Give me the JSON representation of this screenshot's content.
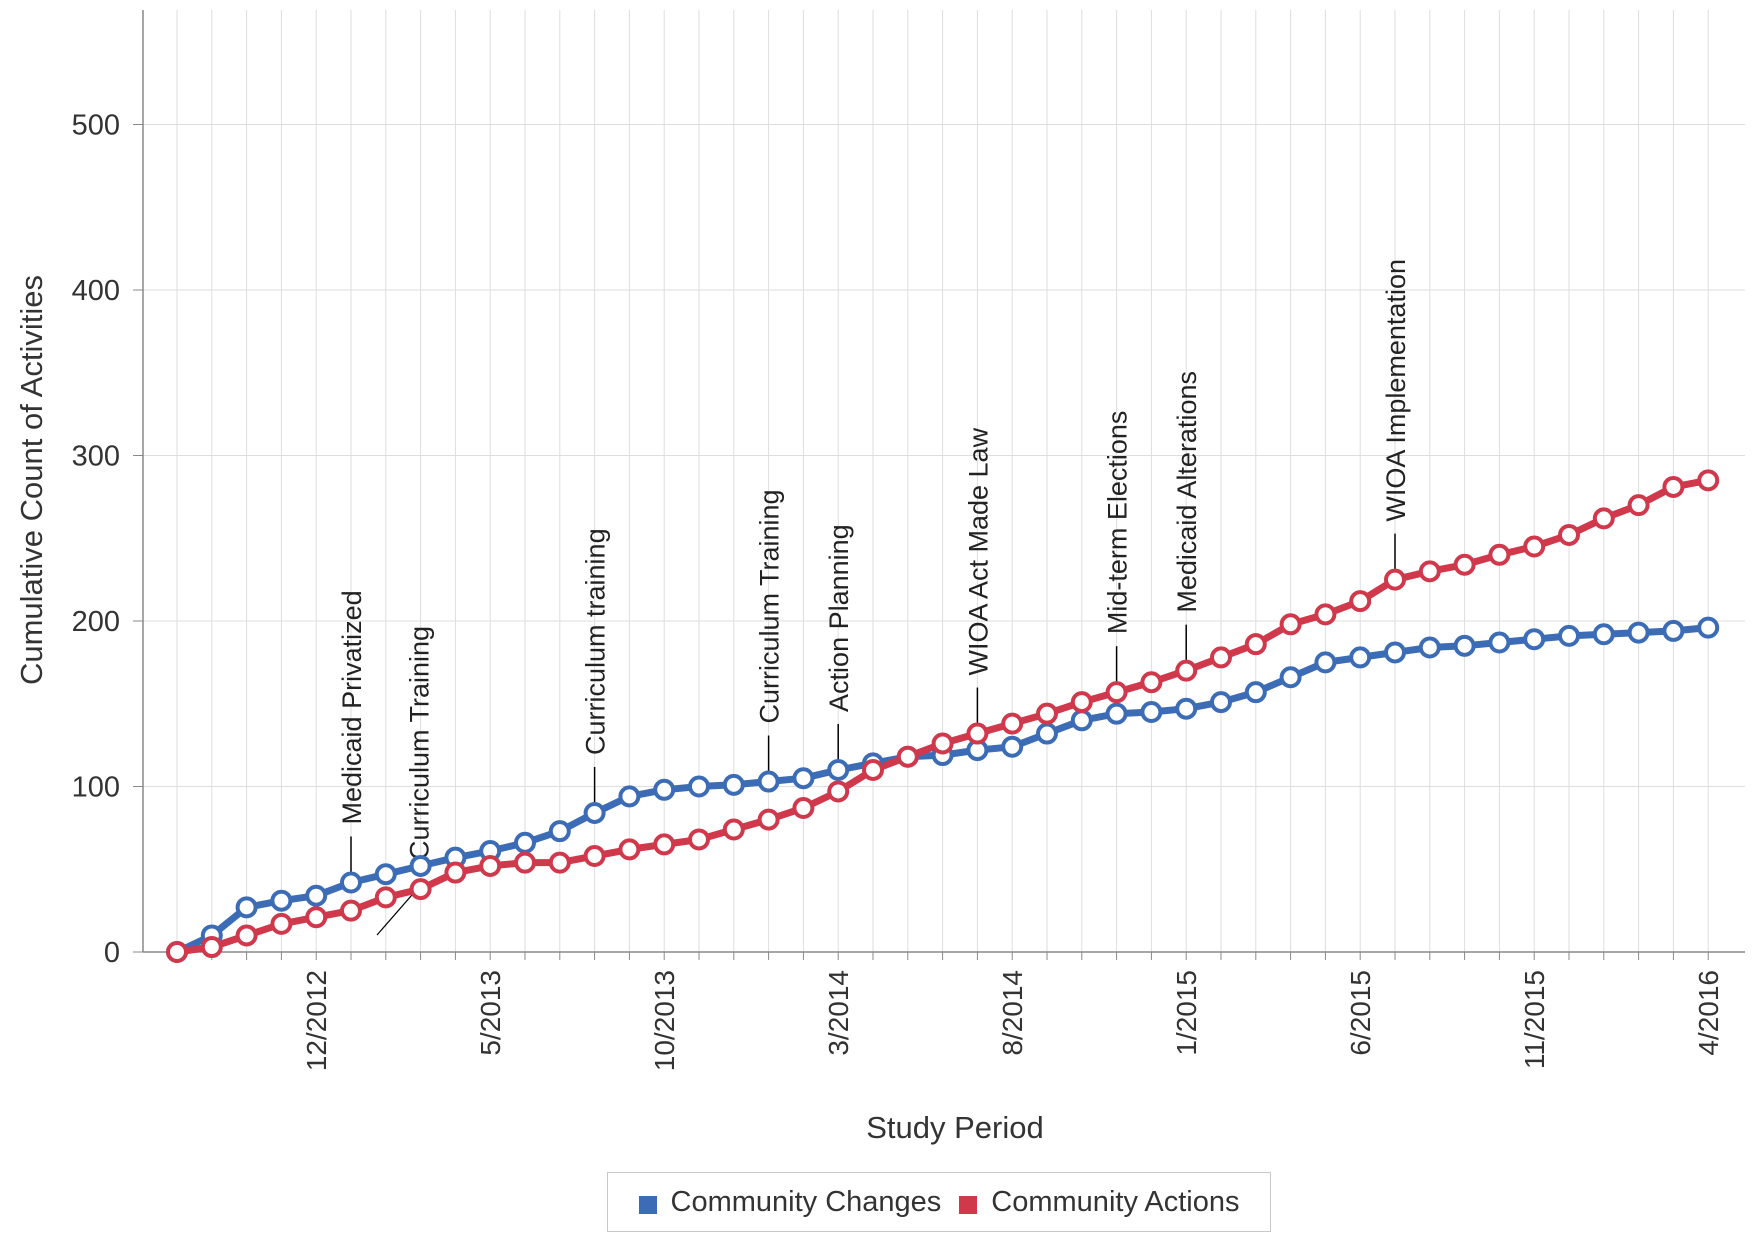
{
  "chart_data": {
    "type": "line",
    "xlabel": "Study Period",
    "ylabel": "Cumulative Count of Activities",
    "ylim": [
      0,
      560
    ],
    "y_ticks": [
      0,
      100,
      200,
      300,
      400,
      500
    ],
    "x_tick_labels": [
      "12/2012",
      "5/2013",
      "10/2013",
      "3/2014",
      "8/2014",
      "1/2015",
      "6/2015",
      "11/2015",
      "4/2016"
    ],
    "x_tick_indices": [
      4,
      9,
      14,
      19,
      24,
      29,
      34,
      39,
      44
    ],
    "point_count": 45,
    "grid": true,
    "legend_position": "bottom-center",
    "series": [
      {
        "name": "Community Changes",
        "color": "#3b6cb5",
        "values": [
          0,
          10,
          27,
          31,
          34,
          42,
          47,
          52,
          57,
          61,
          66,
          73,
          84,
          94,
          98,
          100,
          101,
          103,
          105,
          110,
          114,
          118,
          119,
          122,
          124,
          132,
          140,
          144,
          145,
          147,
          151,
          157,
          166,
          175,
          178,
          181,
          184,
          185,
          187,
          189,
          191,
          192,
          193,
          194,
          196
        ]
      },
      {
        "name": "Community Actions",
        "color": "#d0384b",
        "values": [
          0,
          3,
          10,
          17,
          21,
          25,
          33,
          38,
          48,
          52,
          54,
          54,
          58,
          62,
          65,
          68,
          74,
          80,
          87,
          97,
          110,
          118,
          126,
          132,
          138,
          144,
          151,
          157,
          163,
          170,
          178,
          186,
          198,
          204,
          212,
          225,
          230,
          234,
          240,
          245,
          252,
          262,
          270,
          281,
          285
        ]
      }
    ],
    "annotations": [
      {
        "label": "Medicaid Privatized",
        "index": 5
      },
      {
        "label": "Curriculum Training",
        "index": 7
      },
      {
        "label": "Curriculum training",
        "index": 12
      },
      {
        "label": "Curriculum Training",
        "index": 17
      },
      {
        "label": "Action Planning",
        "index": 19
      },
      {
        "label": "WIOA Act Made Law",
        "index": 23
      },
      {
        "label": "Mid-term Elections",
        "index": 27
      },
      {
        "label": "Medicaid Alterations",
        "index": 29
      },
      {
        "label": "WIOA Implementation",
        "index": 35
      }
    ]
  }
}
